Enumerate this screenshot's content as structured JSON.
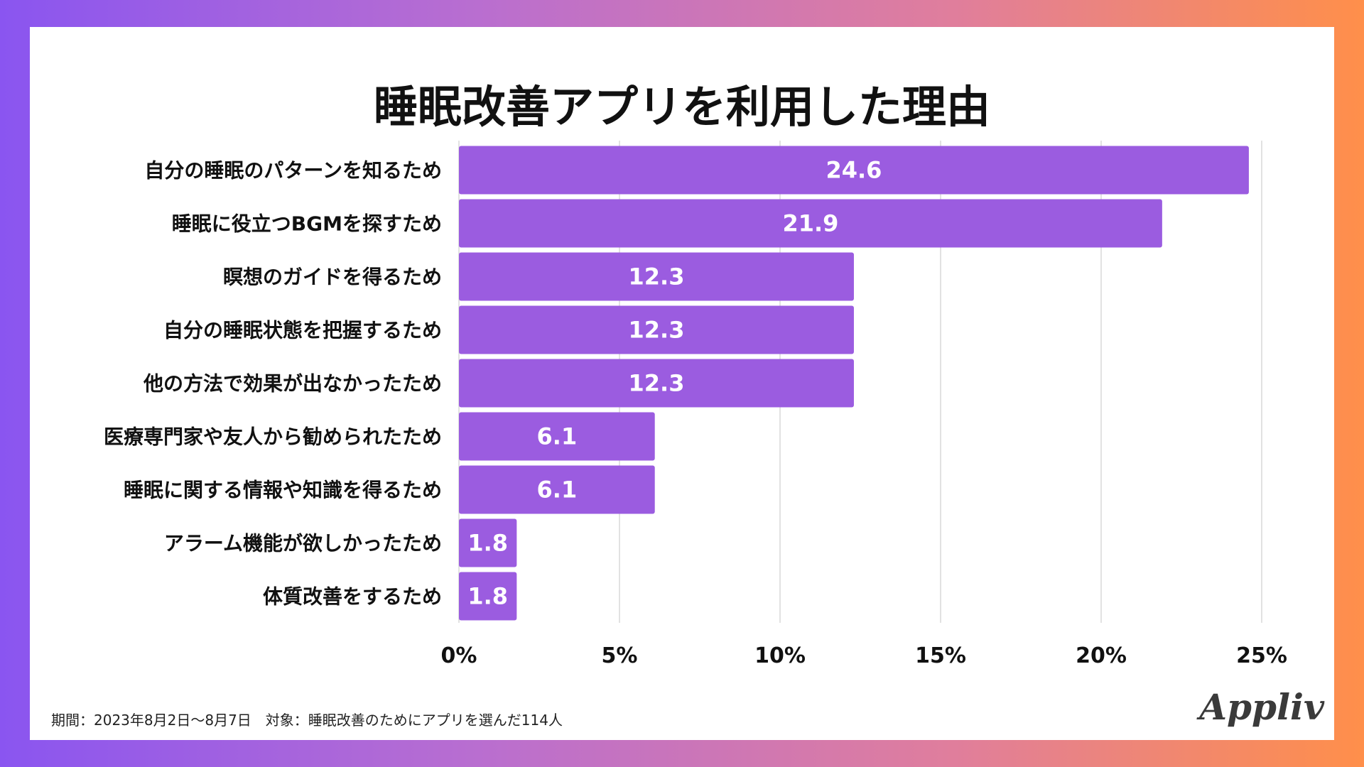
{
  "title": "睡眠改善アプリを利用した理由",
  "chart_data": {
    "type": "bar",
    "orientation": "horizontal",
    "title": "睡眠改善アプリを利用した理由",
    "categories": [
      "自分の睡眠のパターンを知るため",
      "睡眠に役立つBGMを探すため",
      "瞑想のガイドを得るため",
      "自分の睡眠状態を把握するため",
      "他の方法で効果が出なかったため",
      "医療専門家や友人から勧められたため",
      "睡眠に関する情報や知識を得るため",
      "アラーム機能が欲しかったため",
      "体質改善をするため"
    ],
    "values": [
      24.6,
      21.9,
      12.3,
      12.3,
      12.3,
      6.1,
      6.1,
      1.8,
      1.8
    ],
    "xlim": [
      0,
      25
    ],
    "xticks": [
      "0%",
      "5%",
      "10%",
      "15%",
      "20%",
      "25%"
    ],
    "grid": true,
    "bar_color": "#9b5ce0",
    "label_color": "#ffffff"
  },
  "footnote": "期間：2023年8月2日〜8月7日　対象：睡眠改善のためにアプリを選んだ114人",
  "logo": "Appliv"
}
